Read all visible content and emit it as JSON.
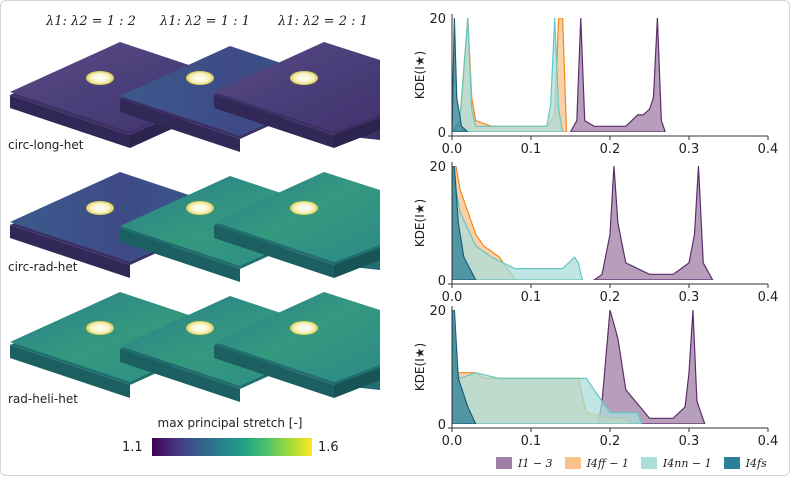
{
  "columns": [
    "λ1: λ2 = 1 : 2",
    "λ1: λ2 = 1 : 1",
    "λ1: λ2 = 2 : 1"
  ],
  "rows": [
    "circ-long-het",
    "circ-rad-het",
    "rad-heli-het"
  ],
  "colorbar": {
    "title": "max principal stretch [-]",
    "min": "1.1",
    "max": "1.6"
  },
  "colors": {
    "I1": "#9f7fa6",
    "I4ff": "#f7c28c",
    "I4nn": "#a9dedb",
    "I4fs": "#2c7f96"
  },
  "chart_data": [
    {
      "type": "area",
      "row": "circ-long-het",
      "ylabel": "KDE(I★)",
      "xlim": [
        0,
        0.4
      ],
      "ylim": [
        0,
        20
      ],
      "xticks": [
        "0.0",
        "0.1",
        "0.2",
        "0.3",
        "0.4"
      ],
      "yticks": [
        "0",
        "20"
      ],
      "series": [
        {
          "name": "I1 − 3",
          "x": [
            0.15,
            0.158,
            0.163,
            0.168,
            0.18,
            0.22,
            0.235,
            0.242,
            0.25,
            0.255,
            0.26,
            0.265,
            0.27
          ],
          "y": [
            0,
            2,
            20,
            2,
            1,
            1,
            3,
            3,
            4,
            6,
            20,
            2,
            0
          ]
        },
        {
          "name": "I4ff − 1",
          "x": [
            0,
            0.01,
            0.02,
            0.025,
            0.03,
            0.05,
            0.08,
            0.1,
            0.12,
            0.13,
            0.135,
            0.14,
            0.145
          ],
          "y": [
            0,
            2,
            20,
            6,
            2,
            1,
            1,
            1,
            1,
            3,
            20,
            20,
            0
          ]
        },
        {
          "name": "I4nn − 1",
          "x": [
            0,
            0.01,
            0.02,
            0.025,
            0.03,
            0.06,
            0.1,
            0.12,
            0.125,
            0.13,
            0.135,
            0.14
          ],
          "y": [
            0,
            2,
            20,
            4,
            1,
            1,
            1,
            1,
            5,
            20,
            4,
            0
          ]
        },
        {
          "name": "I4fs",
          "x": [
            0,
            0.003,
            0.006,
            0.012,
            0.02
          ],
          "y": [
            0,
            20,
            6,
            1,
            0
          ]
        }
      ]
    },
    {
      "type": "area",
      "row": "circ-rad-het",
      "ylabel": "KDE(I★)",
      "xlim": [
        0,
        0.4
      ],
      "ylim": [
        0,
        20
      ],
      "xticks": [
        "0.0",
        "0.1",
        "0.2",
        "0.3",
        "0.4"
      ],
      "yticks": [
        "0",
        "20"
      ],
      "series": [
        {
          "name": "I1 − 3",
          "x": [
            0.18,
            0.19,
            0.2,
            0.205,
            0.21,
            0.22,
            0.25,
            0.28,
            0.3,
            0.307,
            0.312,
            0.318,
            0.33
          ],
          "y": [
            0,
            1,
            8,
            20,
            10,
            3,
            1,
            1,
            3,
            8,
            20,
            3,
            0
          ]
        },
        {
          "name": "I4ff − 1",
          "x": [
            0,
            0.005,
            0.01,
            0.02,
            0.03,
            0.04,
            0.05,
            0.06,
            0.07,
            0.08
          ],
          "y": [
            20,
            20,
            16,
            12,
            8,
            6,
            5,
            4,
            2,
            0
          ]
        },
        {
          "name": "I4nn − 1",
          "x": [
            0,
            0.01,
            0.03,
            0.05,
            0.08,
            0.1,
            0.14,
            0.155,
            0.16,
            0.165
          ],
          "y": [
            20,
            12,
            6,
            4,
            2,
            2,
            2,
            4,
            3,
            0
          ]
        },
        {
          "name": "I4fs",
          "x": [
            0,
            0.003,
            0.008,
            0.015,
            0.03
          ],
          "y": [
            20,
            20,
            10,
            4,
            0
          ]
        }
      ]
    },
    {
      "type": "area",
      "row": "rad-heli-het",
      "ylabel": "KDE(I★)",
      "xlim": [
        0,
        0.4
      ],
      "ylim": [
        0,
        20
      ],
      "xticks": [
        "0.0",
        "0.1",
        "0.2",
        "0.3",
        "0.4"
      ],
      "yticks": [
        "0",
        "20"
      ],
      "series": [
        {
          "name": "I1 − 3",
          "x": [
            0.185,
            0.19,
            0.195,
            0.2,
            0.21,
            0.22,
            0.25,
            0.28,
            0.295,
            0.3,
            0.305,
            0.31,
            0.32
          ],
          "y": [
            0,
            4,
            12,
            20,
            15,
            6,
            1,
            1,
            3,
            9,
            20,
            4,
            0
          ]
        },
        {
          "name": "I4ff − 1",
          "x": [
            0,
            0.005,
            0.02,
            0.03,
            0.04,
            0.06,
            0.1,
            0.14,
            0.16,
            0.17,
            0.2,
            0.22,
            0.23
          ],
          "y": [
            20,
            9,
            9,
            9,
            8,
            8,
            8,
            8,
            8,
            2,
            1,
            1,
            0
          ]
        },
        {
          "name": "I4nn − 1",
          "x": [
            0,
            0.005,
            0.01,
            0.03,
            0.06,
            0.1,
            0.15,
            0.17,
            0.2,
            0.22,
            0.235,
            0.24
          ],
          "y": [
            20,
            10,
            8,
            9,
            8,
            8,
            8,
            8,
            2,
            2,
            2,
            0
          ]
        },
        {
          "name": "I4fs",
          "x": [
            0,
            0.003,
            0.008,
            0.02,
            0.03
          ],
          "y": [
            20,
            20,
            8,
            3,
            0
          ]
        }
      ]
    }
  ],
  "legend": [
    "I1 − 3",
    "I4ff − 1",
    "I4nn − 1",
    "I4fs"
  ]
}
